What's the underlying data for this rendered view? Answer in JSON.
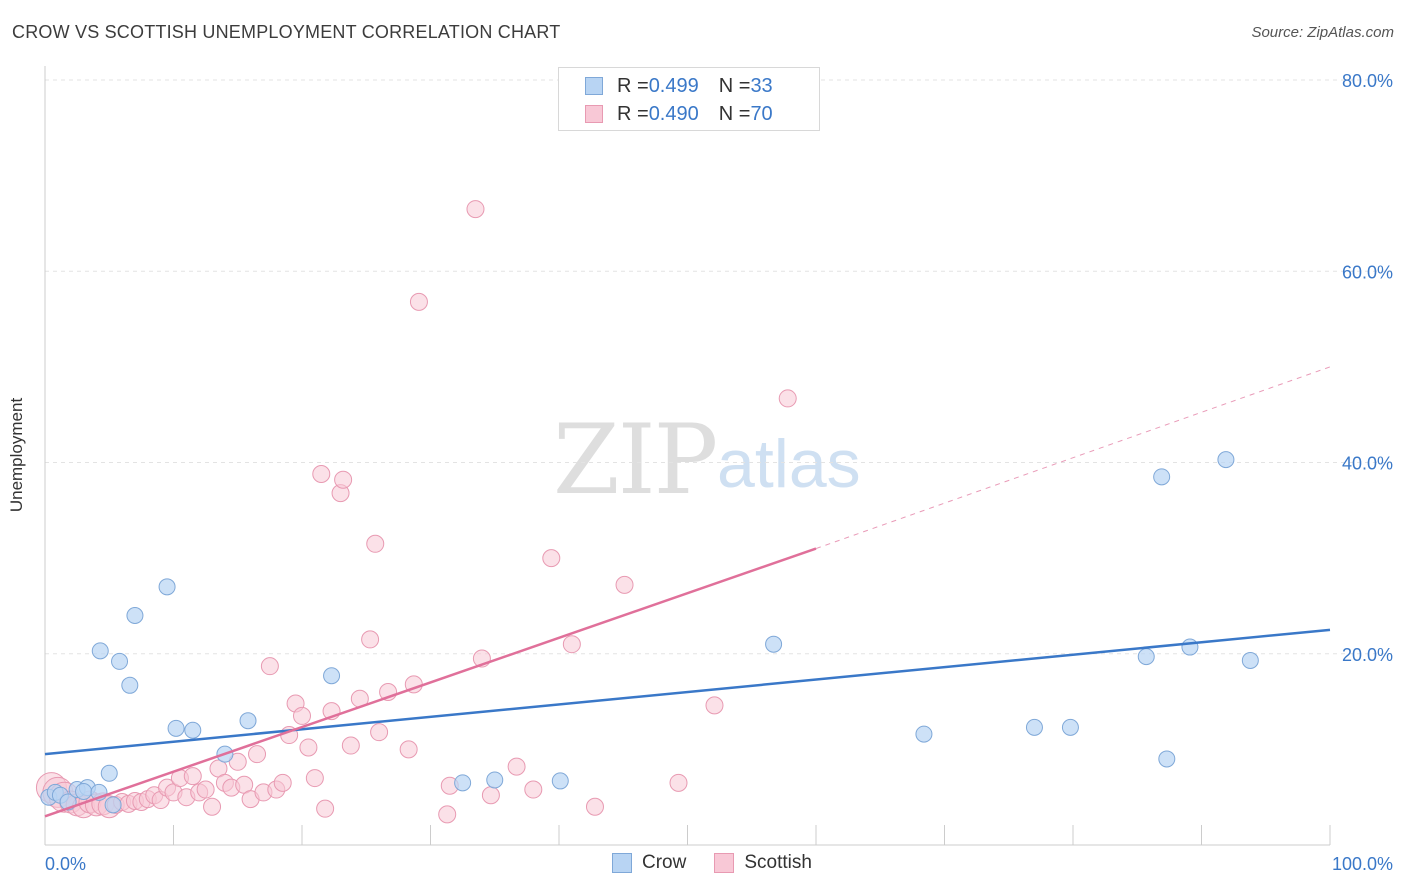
{
  "header": {
    "title": "CROW VS SCOTTISH UNEMPLOYMENT CORRELATION CHART",
    "source": "Source: ZipAtlas.com"
  },
  "legend": {
    "rows": [
      {
        "r_label": "R = ",
        "r_value": "0.499",
        "n_label": "N = ",
        "n_value": "33"
      },
      {
        "r_label": "R = ",
        "r_value": "0.490",
        "n_label": "N = ",
        "n_value": "70"
      }
    ]
  },
  "bottom_legend": {
    "crow": "Crow",
    "scottish": "Scottish"
  },
  "watermark": {
    "zip": "ZIP",
    "atlas": "atlas"
  },
  "colors": {
    "crow_fill": "#b8d4f3",
    "crow_stroke": "#7fa8d8",
    "crow_line": "#3a78c8",
    "scottish_fill": "#f8c8d6",
    "scottish_stroke": "#e89ab2",
    "scottish_line": "#e0709a",
    "tick_label": "#3a78c8",
    "grid": "#e3e3e3"
  },
  "chart_data": {
    "type": "scatter",
    "title": "CROW VS SCOTTISH UNEMPLOYMENT CORRELATION CHART",
    "ylabel": "Unemployment",
    "xlabel": "",
    "xlim": [
      0,
      100
    ],
    "ylim": [
      0,
      80
    ],
    "x_tick_labels": [
      "0.0%",
      "100.0%"
    ],
    "y_ticks": [
      20,
      40,
      60,
      80
    ],
    "y_tick_labels": [
      "20.0%",
      "40.0%",
      "60.0%",
      "80.0%"
    ],
    "grid": true,
    "legend_position": "top-center",
    "series": [
      {
        "name": "Crow",
        "r": 0.499,
        "n": 33,
        "trend": {
          "x0": 0,
          "y0": 9.5,
          "x1": 100,
          "y1": 22.5
        },
        "points": [
          [
            0.3,
            5.0
          ],
          [
            0.8,
            5.5
          ],
          [
            1.2,
            5.2
          ],
          [
            1.8,
            4.5
          ],
          [
            2.5,
            5.8
          ],
          [
            3.3,
            6.0
          ],
          [
            3.0,
            5.6
          ],
          [
            4.2,
            5.5
          ],
          [
            5.3,
            4.2
          ],
          [
            5.0,
            7.5
          ],
          [
            4.3,
            20.3
          ],
          [
            5.8,
            19.2
          ],
          [
            6.6,
            16.7
          ],
          [
            7.0,
            24.0
          ],
          [
            9.5,
            27.0
          ],
          [
            10.2,
            12.2
          ],
          [
            11.5,
            12.0
          ],
          [
            14.0,
            9.5
          ],
          [
            15.8,
            13.0
          ],
          [
            22.3,
            17.7
          ],
          [
            32.5,
            6.5
          ],
          [
            35.0,
            6.8
          ],
          [
            40.1,
            6.7
          ],
          [
            56.7,
            21.0
          ],
          [
            68.4,
            11.6
          ],
          [
            77.0,
            12.3
          ],
          [
            79.8,
            12.3
          ],
          [
            85.7,
            19.7
          ],
          [
            86.9,
            38.5
          ],
          [
            87.3,
            9.0
          ],
          [
            89.1,
            20.7
          ],
          [
            91.9,
            40.3
          ],
          [
            93.8,
            19.3
          ]
        ]
      },
      {
        "name": "Scottish",
        "r": 0.49,
        "n": 70,
        "trend": {
          "x0": 0,
          "y0": 3.0,
          "x1": 60,
          "y1": 31.0,
          "dash_x1": 100,
          "dash_y1": 50.0
        },
        "points": [
          [
            0.5,
            6.0
          ],
          [
            1.0,
            5.5
          ],
          [
            1.5,
            5.0
          ],
          [
            2.0,
            4.5
          ],
          [
            2.5,
            4.2
          ],
          [
            3.0,
            4.0
          ],
          [
            3.5,
            4.5
          ],
          [
            4.0,
            4.2
          ],
          [
            4.5,
            4.3
          ],
          [
            5.0,
            4.0
          ],
          [
            5.5,
            4.2
          ],
          [
            6.0,
            4.5
          ],
          [
            6.5,
            4.3
          ],
          [
            7.0,
            4.6
          ],
          [
            7.5,
            4.5
          ],
          [
            8.0,
            4.8
          ],
          [
            8.5,
            5.2
          ],
          [
            9.0,
            4.7
          ],
          [
            9.5,
            6.0
          ],
          [
            10.0,
            5.5
          ],
          [
            10.5,
            7.0
          ],
          [
            11.0,
            5.0
          ],
          [
            11.5,
            7.2
          ],
          [
            12.0,
            5.5
          ],
          [
            12.5,
            5.8
          ],
          [
            13.0,
            4.0
          ],
          [
            13.5,
            8.0
          ],
          [
            14.0,
            6.5
          ],
          [
            14.5,
            6.0
          ],
          [
            15.0,
            8.7
          ],
          [
            15.5,
            6.3
          ],
          [
            16.0,
            4.8
          ],
          [
            16.5,
            9.5
          ],
          [
            17.0,
            5.5
          ],
          [
            17.5,
            18.7
          ],
          [
            18.0,
            5.8
          ],
          [
            18.5,
            6.5
          ],
          [
            19.0,
            11.5
          ],
          [
            19.5,
            14.8
          ],
          [
            20.0,
            13.5
          ],
          [
            20.5,
            10.2
          ],
          [
            21.0,
            7.0
          ],
          [
            21.8,
            3.8
          ],
          [
            22.3,
            14.0
          ],
          [
            21.5,
            38.8
          ],
          [
            23.0,
            36.8
          ],
          [
            23.2,
            38.2
          ],
          [
            23.8,
            10.4
          ],
          [
            24.5,
            15.3
          ],
          [
            25.3,
            21.5
          ],
          [
            25.7,
            31.5
          ],
          [
            26.0,
            11.8
          ],
          [
            26.7,
            16.0
          ],
          [
            28.3,
            10.0
          ],
          [
            28.7,
            16.8
          ],
          [
            29.1,
            56.8
          ],
          [
            31.5,
            6.2
          ],
          [
            31.3,
            3.2
          ],
          [
            33.5,
            66.5
          ],
          [
            34.0,
            19.5
          ],
          [
            34.7,
            5.2
          ],
          [
            36.7,
            8.2
          ],
          [
            38.0,
            5.8
          ],
          [
            39.4,
            30.0
          ],
          [
            41.0,
            21.0
          ],
          [
            42.8,
            4.0
          ],
          [
            45.1,
            27.2
          ],
          [
            49.3,
            6.5
          ],
          [
            52.1,
            14.6
          ],
          [
            57.8,
            46.7
          ]
        ]
      }
    ]
  }
}
